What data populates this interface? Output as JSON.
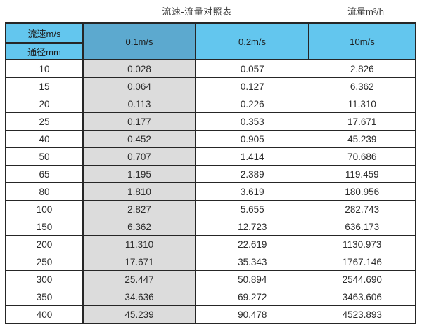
{
  "header": {
    "title": "流速-流量对照表",
    "unit_label": "流量m³/h"
  },
  "table": {
    "corner_top": "流速m/s",
    "corner_bottom": "通径mm",
    "velocity_headers": [
      "0.1m/s",
      "0.2m/s",
      "10m/s"
    ],
    "rows": [
      {
        "dn": "10",
        "values": [
          "0.028",
          "0.057",
          "2.826"
        ]
      },
      {
        "dn": "15",
        "values": [
          "0.064",
          "0.127",
          "6.362"
        ]
      },
      {
        "dn": "20",
        "values": [
          "0.113",
          "0.226",
          "11.310"
        ]
      },
      {
        "dn": "25",
        "values": [
          "0.177",
          "0.353",
          "17.671"
        ]
      },
      {
        "dn": "40",
        "values": [
          "0.452",
          "0.905",
          "45.239"
        ]
      },
      {
        "dn": "50",
        "values": [
          "0.707",
          "1.414",
          "70.686"
        ]
      },
      {
        "dn": "65",
        "values": [
          "1.195",
          "2.389",
          "119.459"
        ]
      },
      {
        "dn": "80",
        "values": [
          "1.810",
          "3.619",
          "180.956"
        ]
      },
      {
        "dn": "100",
        "values": [
          "2.827",
          "5.655",
          "282.743"
        ]
      },
      {
        "dn": "150",
        "values": [
          "6.362",
          "12.723",
          "636.173"
        ]
      },
      {
        "dn": "200",
        "values": [
          "11.310",
          "22.619",
          "1130.973"
        ]
      },
      {
        "dn": "250",
        "values": [
          "17.671",
          "35.343",
          "1767.146"
        ]
      },
      {
        "dn": "300",
        "values": [
          "25.447",
          "50.894",
          "2544.690"
        ]
      },
      {
        "dn": "350",
        "values": [
          "34.636",
          "69.272",
          "3463.606"
        ]
      },
      {
        "dn": "400",
        "values": [
          "45.239",
          "90.478",
          "4523.893"
        ]
      }
    ]
  },
  "colors": {
    "header_blue": "#63C6EE",
    "header_blue_highlight": "#5CA9CF",
    "column_highlight_gray": "#DCDCDC",
    "border": "#262626"
  },
  "chart_data": {
    "type": "table",
    "title": "流速-流量对照表",
    "unit_label": "流量m³/h",
    "row_dimension": "通径mm",
    "column_dimension": "流速m/s",
    "categories": [
      10,
      15,
      20,
      25,
      40,
      50,
      65,
      80,
      100,
      150,
      200,
      250,
      300,
      350,
      400
    ],
    "series": [
      {
        "name": "0.1m/s",
        "values": [
          0.028,
          0.064,
          0.113,
          0.177,
          0.452,
          0.707,
          1.195,
          1.81,
          2.827,
          6.362,
          11.31,
          17.671,
          25.447,
          34.636,
          45.239
        ]
      },
      {
        "name": "0.2m/s",
        "values": [
          0.057,
          0.127,
          0.226,
          0.353,
          0.905,
          1.414,
          2.389,
          3.619,
          5.655,
          12.723,
          22.619,
          35.343,
          50.894,
          69.272,
          90.478
        ]
      },
      {
        "name": "10m/s",
        "values": [
          2.826,
          6.362,
          11.31,
          17.671,
          45.239,
          70.686,
          119.459,
          180.956,
          282.743,
          636.173,
          1130.973,
          1767.146,
          2544.69,
          3463.606,
          4523.893
        ]
      }
    ]
  }
}
